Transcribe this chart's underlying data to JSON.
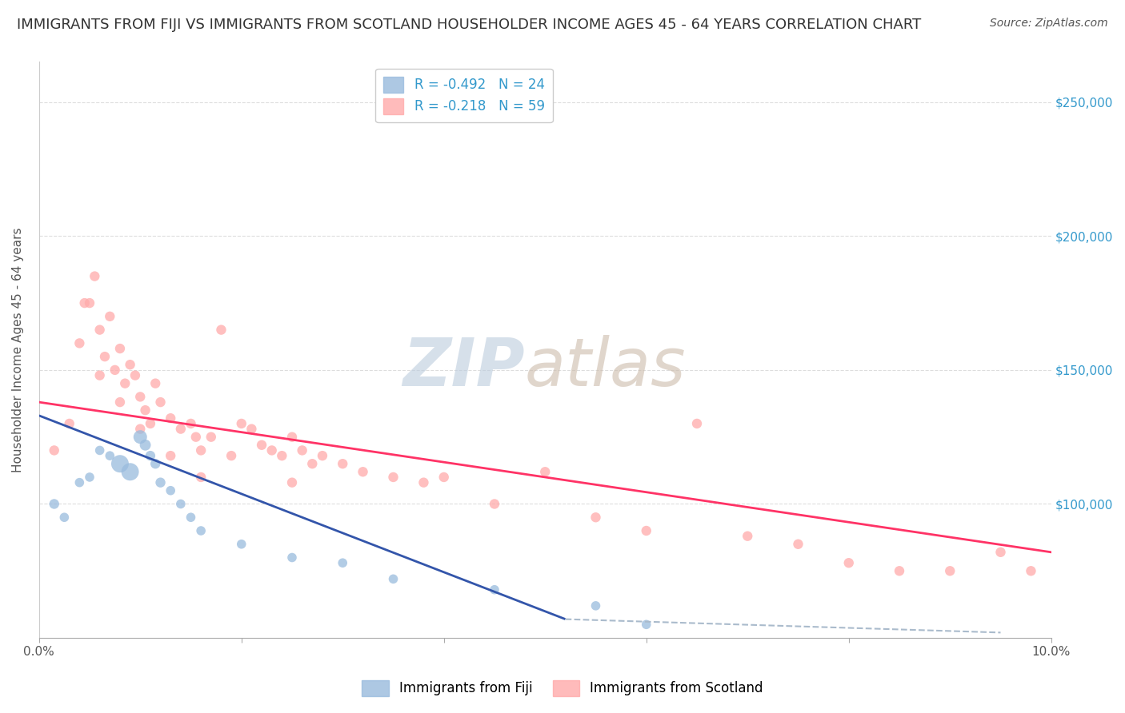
{
  "title": "IMMIGRANTS FROM FIJI VS IMMIGRANTS FROM SCOTLAND HOUSEHOLDER INCOME AGES 45 - 64 YEARS CORRELATION CHART",
  "source": "Source: ZipAtlas.com",
  "ylabel": "Householder Income Ages 45 - 64 years",
  "xlim": [
    0.0,
    10.0
  ],
  "ylim": [
    50000,
    265000
  ],
  "fiji_color": "#99BBDD",
  "scotland_color": "#FFAAAA",
  "fiji_line_color": "#3355AA",
  "scotland_line_color": "#FF3366",
  "dashed_line_color": "#AABBCC",
  "fiji_R": -0.492,
  "fiji_N": 24,
  "scotland_R": -0.218,
  "scotland_N": 59,
  "fiji_scatter_x": [
    0.15,
    0.25,
    0.4,
    0.5,
    0.6,
    0.7,
    0.8,
    0.9,
    1.0,
    1.05,
    1.1,
    1.15,
    1.2,
    1.3,
    1.4,
    1.5,
    1.6,
    2.0,
    2.5,
    3.0,
    3.5,
    4.5,
    5.5,
    6.0
  ],
  "fiji_scatter_y": [
    100000,
    95000,
    108000,
    110000,
    120000,
    118000,
    115000,
    112000,
    125000,
    122000,
    118000,
    115000,
    108000,
    105000,
    100000,
    95000,
    90000,
    85000,
    80000,
    78000,
    72000,
    68000,
    62000,
    55000
  ],
  "fiji_scatter_size": [
    80,
    70,
    70,
    70,
    70,
    70,
    250,
    250,
    150,
    100,
    80,
    80,
    80,
    70,
    70,
    70,
    70,
    70,
    70,
    70,
    70,
    70,
    70,
    70
  ],
  "scotland_scatter_x": [
    0.15,
    0.3,
    0.4,
    0.5,
    0.55,
    0.6,
    0.65,
    0.7,
    0.75,
    0.8,
    0.85,
    0.9,
    0.95,
    1.0,
    1.05,
    1.1,
    1.15,
    1.2,
    1.3,
    1.4,
    1.5,
    1.55,
    1.6,
    1.7,
    1.8,
    1.9,
    2.0,
    2.1,
    2.2,
    2.3,
    2.4,
    2.5,
    2.6,
    2.7,
    2.8,
    3.0,
    3.2,
    3.5,
    3.8,
    4.0,
    4.5,
    5.0,
    5.5,
    6.0,
    6.5,
    7.0,
    7.5,
    8.0,
    8.5,
    9.0,
    9.5,
    0.45,
    0.6,
    0.8,
    1.0,
    1.3,
    1.6,
    2.5,
    9.8
  ],
  "scotland_scatter_y": [
    120000,
    130000,
    160000,
    175000,
    185000,
    165000,
    155000,
    170000,
    150000,
    158000,
    145000,
    152000,
    148000,
    140000,
    135000,
    130000,
    145000,
    138000,
    132000,
    128000,
    130000,
    125000,
    120000,
    125000,
    165000,
    118000,
    130000,
    128000,
    122000,
    120000,
    118000,
    125000,
    120000,
    115000,
    118000,
    115000,
    112000,
    110000,
    108000,
    110000,
    100000,
    112000,
    95000,
    90000,
    130000,
    88000,
    85000,
    78000,
    75000,
    75000,
    82000,
    175000,
    148000,
    138000,
    128000,
    118000,
    110000,
    108000,
    75000
  ],
  "scotland_scatter_size": [
    80,
    80,
    80,
    80,
    80,
    80,
    80,
    80,
    80,
    80,
    80,
    80,
    80,
    80,
    80,
    80,
    80,
    80,
    80,
    80,
    80,
    80,
    80,
    80,
    80,
    80,
    80,
    80,
    80,
    80,
    80,
    80,
    80,
    80,
    80,
    80,
    80,
    80,
    80,
    80,
    80,
    80,
    80,
    80,
    80,
    80,
    80,
    80,
    80,
    80,
    80,
    80,
    80,
    80,
    80,
    80,
    80,
    80,
    80
  ],
  "fiji_line_x": [
    0.0,
    5.2
  ],
  "fiji_line_y": [
    133000,
    57000
  ],
  "scotland_line_x": [
    0.0,
    10.0
  ],
  "scotland_line_y": [
    138000,
    82000
  ],
  "dashed_line_x": [
    5.2,
    9.5
  ],
  "dashed_line_y": [
    57000,
    52000
  ],
  "ytick_vals": [
    50000,
    100000,
    150000,
    200000,
    250000
  ],
  "ytick_right_labels": [
    "$100,000",
    "$150,000",
    "$200,000",
    "$250,000"
  ],
  "ytick_right_vals": [
    100000,
    150000,
    200000,
    250000
  ],
  "grid_vals": [
    100000,
    150000,
    200000,
    250000
  ],
  "xtick_vals": [
    0,
    2,
    4,
    6,
    8,
    10
  ],
  "xtick_labels": [
    "0.0%",
    "",
    "",
    "",
    "",
    "10.0%"
  ],
  "background_color": "#FFFFFF",
  "grid_color": "#DDDDDD",
  "title_fontsize": 13,
  "source_fontsize": 10,
  "legend_fiji_label": "Immigrants from Fiji",
  "legend_scotland_label": "Immigrants from Scotland",
  "watermark_zip": "ZIP",
  "watermark_atlas": "atlas",
  "watermark_color_zip": "#BBCCDD",
  "watermark_color_atlas": "#CCBBAA"
}
